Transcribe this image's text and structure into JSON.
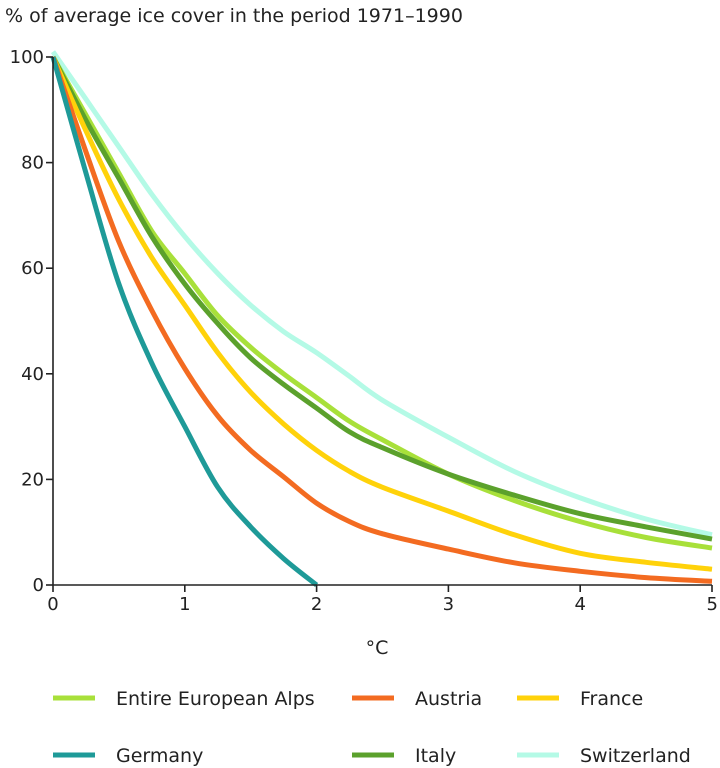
{
  "chart_data": {
    "type": "line",
    "title": "% of average ice cover in the period 1971–1990",
    "xlabel": "°C",
    "ylabel": "",
    "xlim": [
      0,
      5
    ],
    "ylim": [
      0,
      100
    ],
    "x_ticks": [
      "0",
      "1",
      "2",
      "3",
      "4",
      "5"
    ],
    "y_ticks": [
      "0",
      "20",
      "40",
      "60",
      "80",
      "100"
    ],
    "grid": false,
    "legend_position": "bottom",
    "series": [
      {
        "name": "Entire European Alps",
        "color": "#a8e03a",
        "x": [
          0,
          0.25,
          0.5,
          0.75,
          1,
          1.25,
          1.5,
          1.75,
          2,
          2.25,
          2.5,
          3,
          3.5,
          4,
          4.5,
          5
        ],
        "y": [
          100,
          89,
          78,
          67,
          59,
          51,
          45,
          40,
          35.5,
          31,
          27.5,
          21,
          16,
          12,
          9,
          7
        ]
      },
      {
        "name": "Austria",
        "color": "#f36b21",
        "x": [
          0,
          0.25,
          0.5,
          0.75,
          1,
          1.25,
          1.5,
          1.75,
          2,
          2.25,
          2.5,
          3,
          3.5,
          4,
          4.5,
          5
        ],
        "y": [
          100,
          82,
          65,
          52,
          41,
          32,
          25.5,
          20.5,
          15.5,
          12,
          9.7,
          6.8,
          4.2,
          2.6,
          1.4,
          0.7
        ]
      },
      {
        "name": "France",
        "color": "#ffd20a",
        "x": [
          0,
          0.25,
          0.5,
          0.75,
          1,
          1.25,
          1.5,
          1.75,
          2,
          2.25,
          2.5,
          3,
          3.5,
          4,
          4.5,
          5
        ],
        "y": [
          100,
          86,
          73,
          62,
          53,
          44,
          36.5,
          30.5,
          25.5,
          21.5,
          18.5,
          14,
          9.5,
          6,
          4.3,
          3
        ]
      },
      {
        "name": "Germany",
        "color": "#1e9a98",
        "x": [
          0,
          0.25,
          0.5,
          0.75,
          1,
          1.25,
          1.5,
          1.75,
          2
        ],
        "y": [
          100,
          78,
          57,
          42,
          30,
          18.5,
          11,
          5,
          0
        ]
      },
      {
        "name": "Italy",
        "color": "#5ba12c",
        "x": [
          0,
          0.25,
          0.5,
          0.75,
          1,
          1.25,
          1.5,
          1.75,
          2,
          2.25,
          2.5,
          3,
          3.5,
          4,
          4.5,
          5
        ],
        "y": [
          100,
          88,
          77,
          66,
          57,
          49.5,
          43,
          38,
          33.5,
          29,
          26,
          21,
          17,
          13.5,
          11,
          8.7
        ]
      },
      {
        "name": "Switzerland",
        "color": "#b4fae6",
        "x": [
          0,
          0.25,
          0.5,
          0.75,
          1,
          1.25,
          1.5,
          1.75,
          2,
          2.25,
          2.5,
          3,
          3.5,
          4,
          4.5,
          5
        ],
        "y": [
          101,
          92,
          83,
          74,
          66,
          59,
          53,
          48,
          44,
          39.5,
          35,
          28,
          21.5,
          16.5,
          12.5,
          9.5
        ]
      }
    ]
  }
}
